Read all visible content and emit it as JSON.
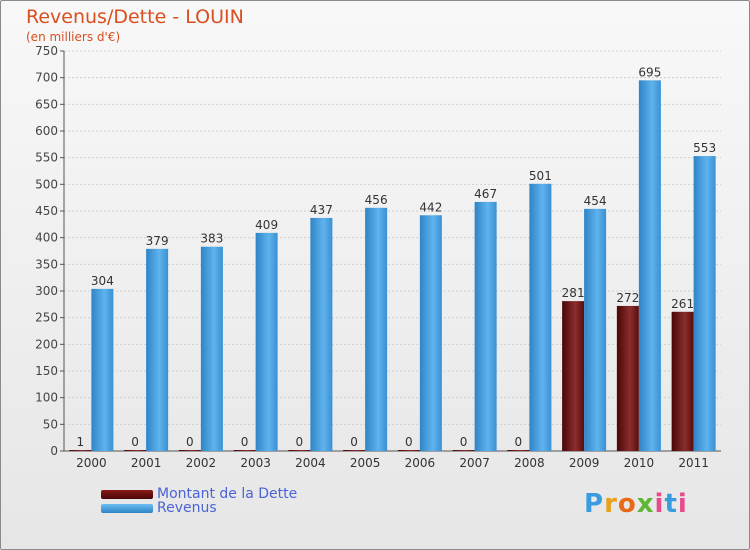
{
  "chart_data": {
    "type": "bar",
    "title": "Revenus/Dette - LOUIN",
    "subtitle": "(en milliers d'€)",
    "categories": [
      "2000",
      "2001",
      "2002",
      "2003",
      "2004",
      "2005",
      "2006",
      "2007",
      "2008",
      "2009",
      "2010",
      "2011"
    ],
    "series": [
      {
        "name": "Montant de la Dette",
        "color": "#6b0f0f",
        "values": [
          1,
          0,
          0,
          0,
          0,
          0,
          0,
          0,
          0,
          281,
          272,
          261
        ]
      },
      {
        "name": "Revenus",
        "color": "#3d97d6",
        "values": [
          304,
          379,
          383,
          409,
          437,
          456,
          442,
          467,
          501,
          454,
          695,
          553
        ]
      }
    ],
    "ylim": [
      0,
      750
    ],
    "yticks": [
      0,
      50,
      100,
      150,
      200,
      250,
      300,
      350,
      400,
      450,
      500,
      550,
      600,
      650,
      700,
      750
    ],
    "grid": true,
    "legend_position": "bottom-left"
  },
  "logo_text": "Proxiti"
}
